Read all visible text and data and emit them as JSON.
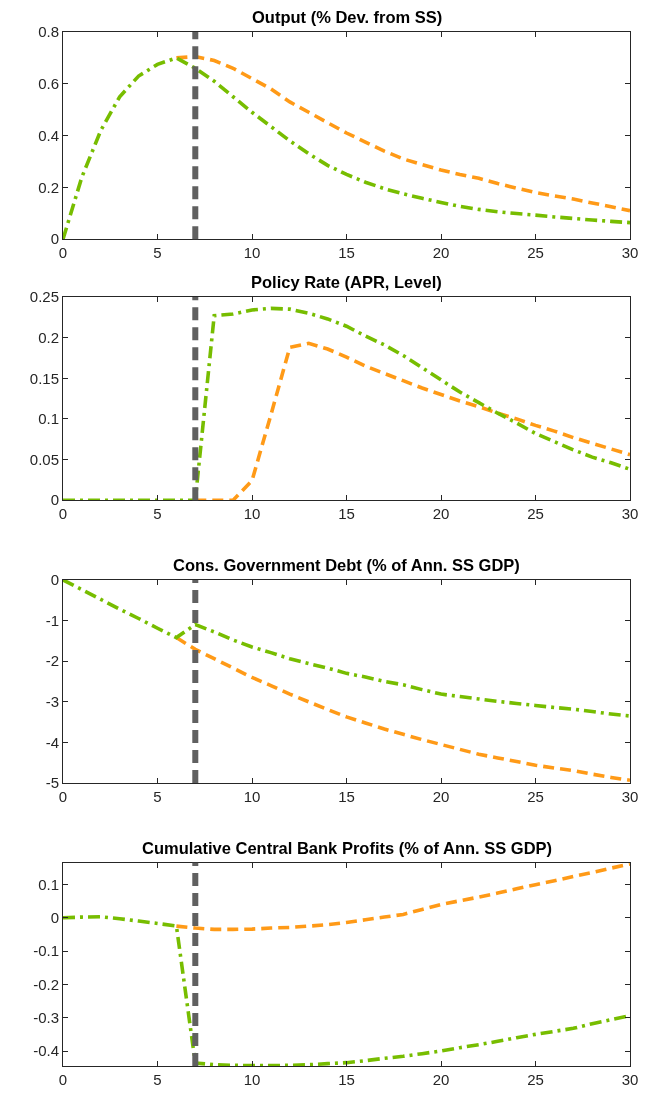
{
  "chart_data": [
    {
      "type": "line",
      "title": "Output (% Dev. from SS)",
      "x": [
        0,
        1,
        2,
        3,
        4,
        5,
        6,
        7,
        8,
        9,
        10,
        11,
        12,
        13,
        14,
        15,
        16,
        17,
        18,
        19,
        20,
        21,
        22,
        23,
        24,
        25,
        26,
        27,
        28,
        29,
        30
      ],
      "series": [
        {
          "color": "#ff9a17",
          "line_style": "dashed",
          "values": [
            null,
            null,
            null,
            null,
            null,
            null,
            0.7,
            0.705,
            0.69,
            0.66,
            0.62,
            0.58,
            0.53,
            0.49,
            0.45,
            0.41,
            0.375,
            0.34,
            0.31,
            0.288,
            0.267,
            0.25,
            0.235,
            0.215,
            0.197,
            0.18,
            0.167,
            0.155,
            0.14,
            0.125,
            0.11
          ]
        },
        {
          "color": "#77bd00",
          "line_style": "dashdot",
          "values": [
            0,
            0.24,
            0.42,
            0.55,
            0.63,
            0.675,
            0.7,
            0.66,
            0.61,
            0.55,
            0.49,
            0.435,
            0.38,
            0.33,
            0.285,
            0.25,
            0.22,
            0.195,
            0.175,
            0.158,
            0.142,
            0.127,
            0.115,
            0.106,
            0.099,
            0.093,
            0.086,
            0.08,
            0.074,
            0.069,
            0.064
          ]
        }
      ],
      "xlim": [
        0,
        30
      ],
      "xticks": [
        0,
        5,
        10,
        15,
        20,
        25,
        30
      ],
      "ylim": [
        0,
        0.8
      ],
      "yticks": [
        0,
        0.2,
        0.4,
        0.6,
        0.8
      ],
      "ref_lines": [
        {
          "axis": "x",
          "value": 7,
          "color": "#606060",
          "line_style": "dashed"
        }
      ]
    },
    {
      "type": "line",
      "title": "Policy Rate (APR, Level)",
      "x": [
        0,
        1,
        2,
        3,
        4,
        5,
        6,
        7,
        8,
        9,
        10,
        11,
        12,
        13,
        14,
        15,
        16,
        17,
        18,
        19,
        20,
        21,
        22,
        23,
        24,
        25,
        26,
        27,
        28,
        29,
        30
      ],
      "series": [
        {
          "color": "#ff9a17",
          "line_style": "dashed",
          "values": [
            null,
            null,
            null,
            null,
            null,
            null,
            null,
            0,
            0,
            0,
            0.024,
            0.105,
            0.188,
            0.193,
            0.186,
            0.176,
            0.165,
            0.156,
            0.147,
            0.138,
            0.13,
            0.122,
            0.115,
            0.107,
            0.1,
            0.092,
            0.085,
            0.077,
            0.07,
            0.063,
            0.056
          ]
        },
        {
          "color": "#77bd00",
          "line_style": "dashdot",
          "values": [
            0,
            0,
            0,
            0,
            0,
            0,
            0,
            0,
            0.227,
            0.229,
            0.234,
            0.236,
            0.235,
            0.23,
            0.223,
            0.214,
            0.202,
            0.191,
            0.178,
            0.163,
            0.148,
            0.133,
            0.12,
            0.107,
            0.095,
            0.082,
            0.072,
            0.062,
            0.053,
            0.046,
            0.038
          ]
        }
      ],
      "xlim": [
        0,
        30
      ],
      "xticks": [
        0,
        5,
        10,
        15,
        20,
        25,
        30
      ],
      "ylim": [
        0,
        0.25
      ],
      "yticks": [
        0,
        0.05,
        0.1,
        0.15,
        0.2,
        0.25
      ],
      "ref_lines": [
        {
          "axis": "x",
          "value": 7,
          "color": "#606060",
          "line_style": "dashed"
        }
      ]
    },
    {
      "type": "line",
      "title": "Cons. Government Debt (% of Ann. SS GDP)",
      "x": [
        0,
        1,
        2,
        3,
        4,
        5,
        6,
        7,
        8,
        9,
        10,
        11,
        12,
        13,
        14,
        15,
        16,
        17,
        18,
        19,
        20,
        21,
        22,
        23,
        24,
        25,
        26,
        27,
        28,
        29,
        30
      ],
      "series": [
        {
          "color": "#ff9a17",
          "line_style": "dashed",
          "values": [
            null,
            null,
            null,
            null,
            null,
            null,
            -1.42,
            -1.71,
            -1.94,
            -2.17,
            -2.4,
            -2.6,
            -2.81,
            -3.0,
            -3.19,
            -3.37,
            -3.52,
            -3.67,
            -3.8,
            -3.93,
            -4.05,
            -4.17,
            -4.29,
            -4.38,
            -4.47,
            -4.56,
            -4.63,
            -4.69,
            -4.78,
            -4.86,
            -4.93
          ]
        },
        {
          "color": "#77bd00",
          "line_style": "dashdot",
          "values": [
            0,
            -0.24,
            -0.48,
            -0.72,
            -0.95,
            -1.19,
            -1.42,
            -1.1,
            -1.28,
            -1.48,
            -1.65,
            -1.79,
            -1.94,
            -2.06,
            -2.17,
            -2.3,
            -2.39,
            -2.5,
            -2.58,
            -2.7,
            -2.81,
            -2.87,
            -2.93,
            -2.99,
            -3.04,
            -3.09,
            -3.14,
            -3.18,
            -3.24,
            -3.3,
            -3.35
          ]
        }
      ],
      "xlim": [
        0,
        30
      ],
      "xticks": [
        0,
        5,
        10,
        15,
        20,
        25,
        30
      ],
      "ylim": [
        -5,
        0
      ],
      "yticks": [
        -5,
        -4,
        -3,
        -2,
        -1,
        0
      ],
      "ref_lines": [
        {
          "axis": "x",
          "value": 7,
          "color": "#606060",
          "line_style": "dashed"
        }
      ]
    },
    {
      "type": "line",
      "title": "Cumulative Central Bank Profits (% of Ann. SS GDP)",
      "x": [
        0,
        1,
        2,
        3,
        4,
        5,
        6,
        7,
        8,
        9,
        10,
        11,
        12,
        13,
        14,
        15,
        16,
        17,
        18,
        19,
        20,
        21,
        22,
        23,
        24,
        25,
        26,
        27,
        28,
        29,
        30
      ],
      "series": [
        {
          "color": "#ff9a17",
          "line_style": "dashed",
          "values": [
            null,
            null,
            null,
            null,
            null,
            null,
            -0.025,
            -0.031,
            -0.035,
            -0.035,
            -0.034,
            -0.031,
            -0.029,
            -0.025,
            -0.021,
            -0.014,
            -0.006,
            0.002,
            0.01,
            0.025,
            0.04,
            0.051,
            0.062,
            0.074,
            0.087,
            0.099,
            0.111,
            0.124,
            0.136,
            0.149,
            0.161
          ]
        },
        {
          "color": "#77bd00",
          "line_style": "dashdot",
          "values": [
            0,
            0.002,
            0.003,
            -0.003,
            -0.01,
            -0.017,
            -0.025,
            -0.436,
            -0.441,
            -0.443,
            -0.444,
            -0.444,
            -0.443,
            -0.441,
            -0.438,
            -0.435,
            -0.429,
            -0.422,
            -0.416,
            -0.408,
            -0.4,
            -0.39,
            -0.381,
            -0.371,
            -0.36,
            -0.35,
            -0.341,
            -0.332,
            -0.318,
            -0.306,
            -0.294
          ]
        }
      ],
      "xlim": [
        0,
        30
      ],
      "xticks": [
        0,
        5,
        10,
        15,
        20,
        25,
        30
      ],
      "ylim": [
        -0.445,
        0.165
      ],
      "yticks": [
        -0.4,
        -0.3,
        -0.2,
        -0.1,
        0,
        0.1
      ],
      "ref_lines": [
        {
          "axis": "x",
          "value": 7,
          "color": "#606060",
          "line_style": "dashed"
        }
      ]
    }
  ]
}
